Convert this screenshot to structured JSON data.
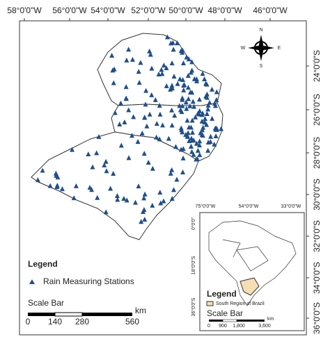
{
  "map": {
    "top_labels": [
      "58°0'0\"W",
      "56°0'0\"W",
      "54°0'0\"W",
      "52°0'0\"W",
      "50°0'0\"W",
      "48°0'0\"W",
      "46°0'0\"W"
    ],
    "right_labels": [
      "24°0'0\"S",
      "26°0'0\"S",
      "28°0'0\"S",
      "30°0'0\"S",
      "32°0'0\"S",
      "34°0'0\"S",
      "36°0'0\"S"
    ],
    "compass": {
      "n": "N",
      "e": "E",
      "s": "S",
      "w": "W"
    },
    "legend": {
      "title": "Legend",
      "item": "Rain Measuring Stations"
    },
    "scale_bar": {
      "title": "Scale Bar",
      "ticks": [
        "0",
        "140",
        "280",
        "560"
      ],
      "unit": "km"
    },
    "inset": {
      "top_labels": [
        "75°0'0\"W",
        "54°0'0\"W",
        "33°0'0\"W"
      ],
      "left_labels": [
        "0°0'0\"",
        "18°0'0\"S",
        "36°0'0\"S"
      ],
      "legend": {
        "title": "Legend",
        "item": "South Region of Brazil"
      },
      "scale_bar": {
        "title": "Scale Bar",
        "ticks": [
          "0",
          "900",
          "1,800",
          "3,600"
        ],
        "unit": "km"
      }
    }
  }
}
